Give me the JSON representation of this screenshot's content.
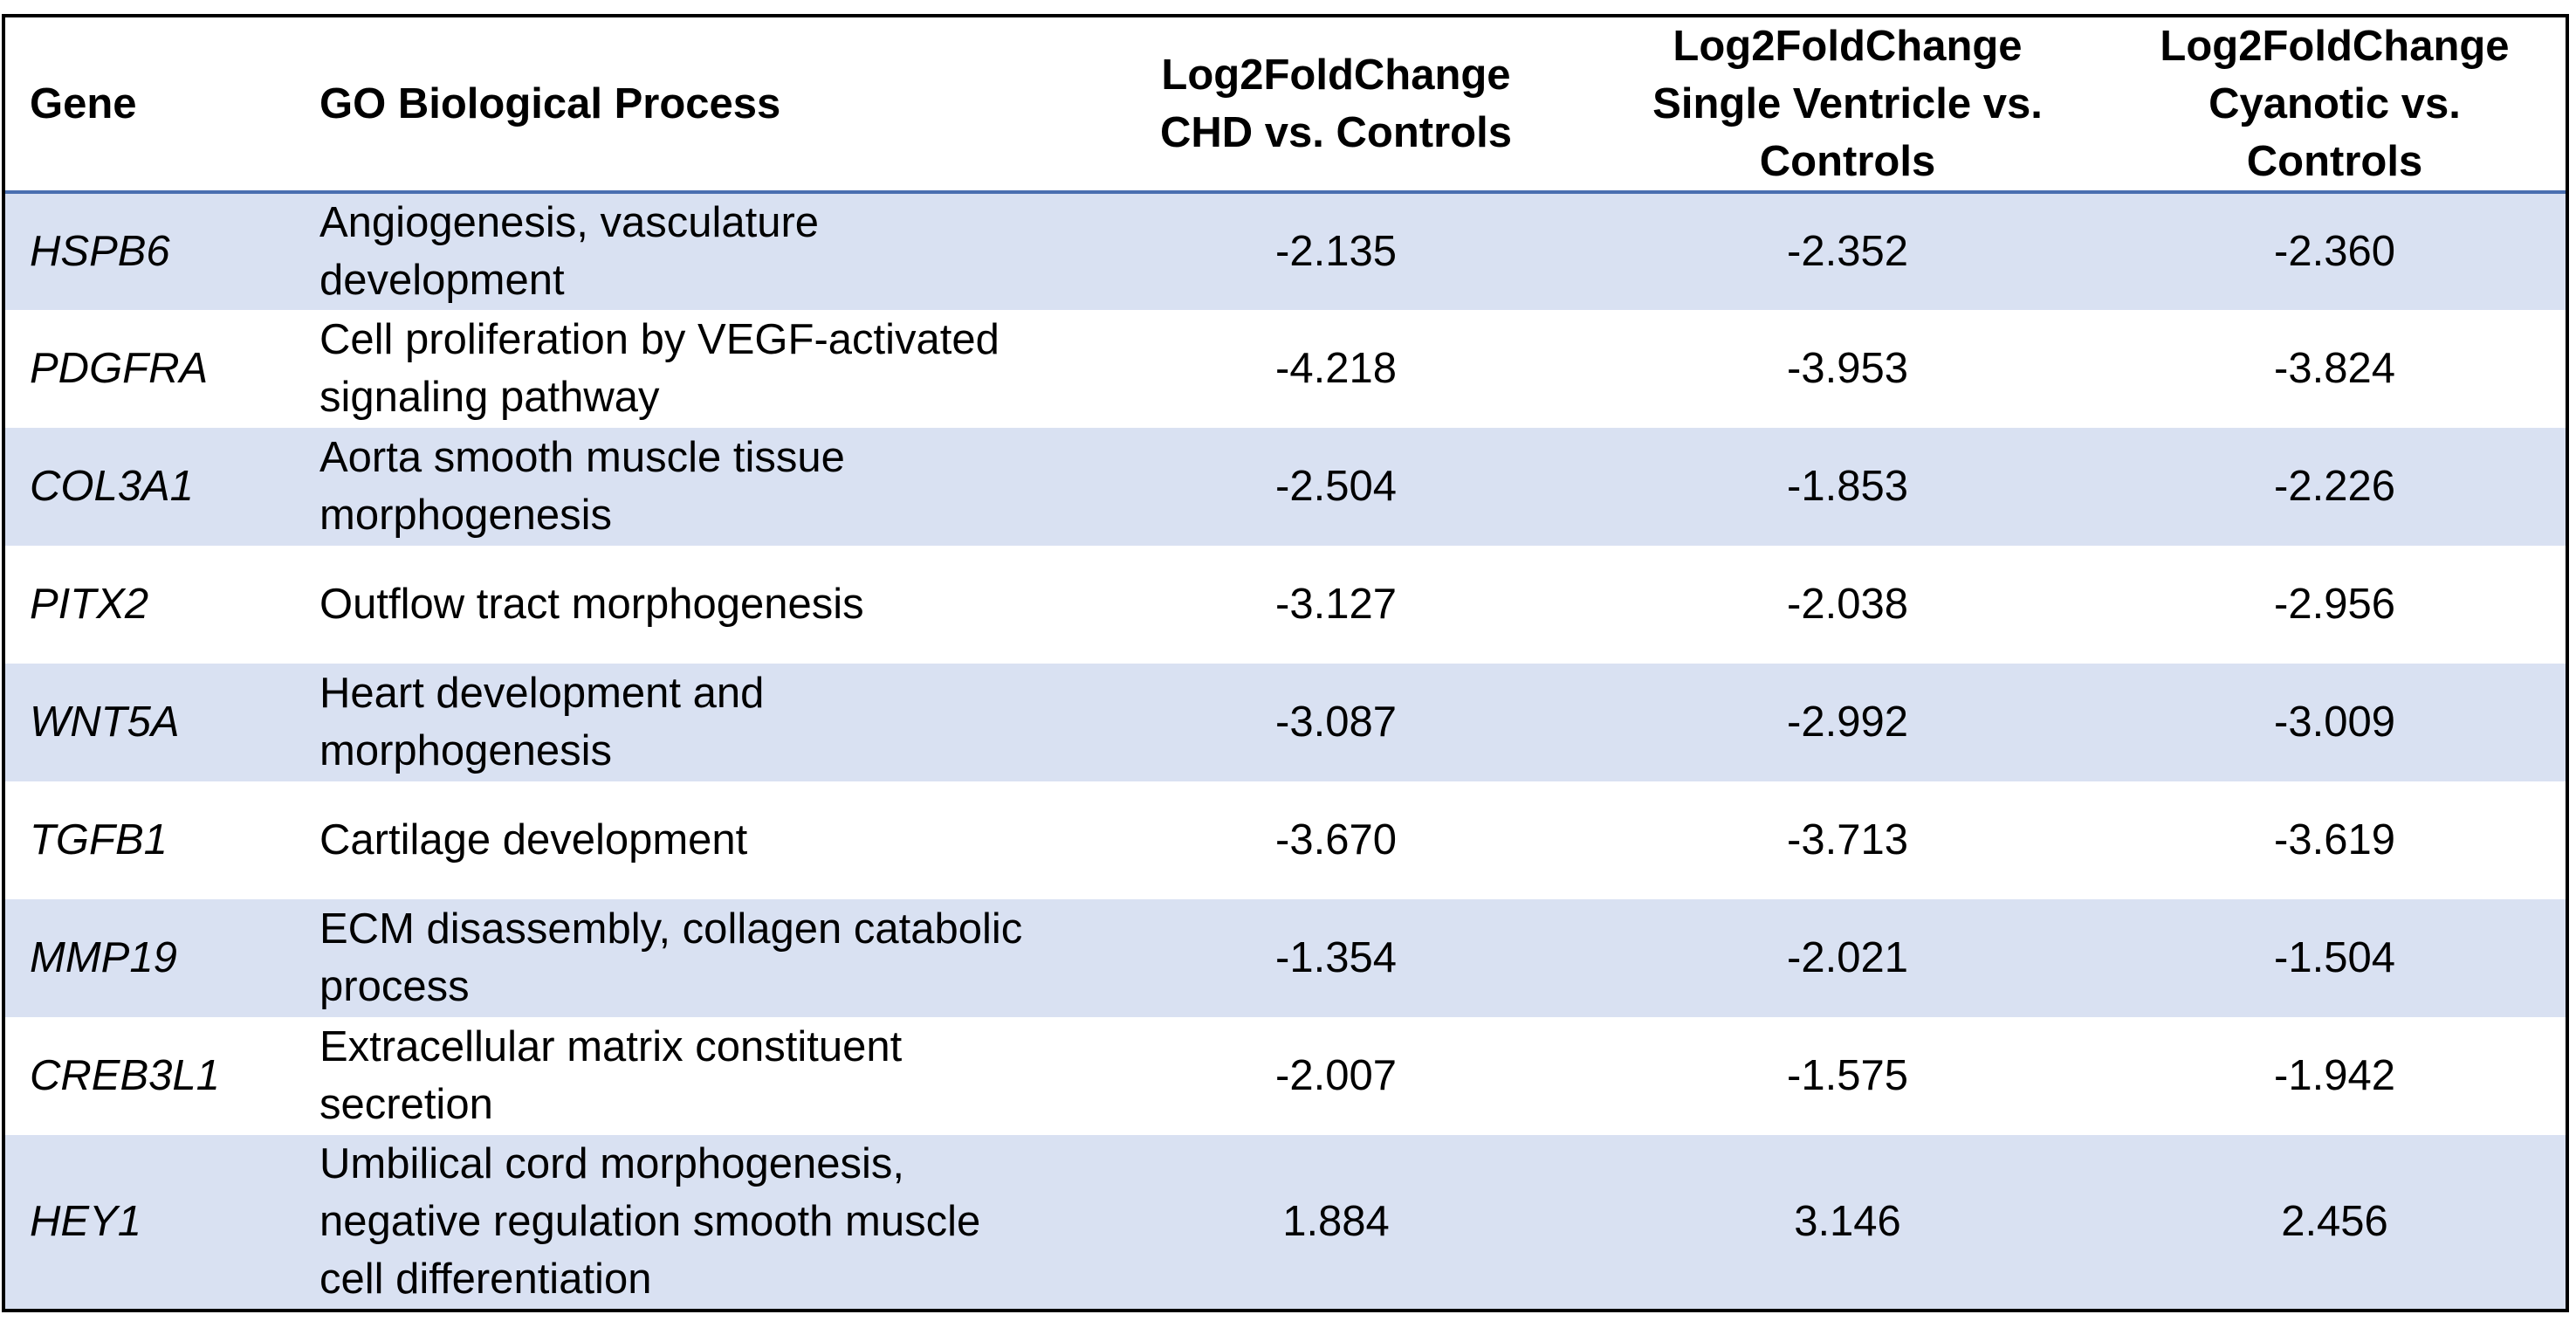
{
  "table": {
    "headers": {
      "gene": "Gene",
      "go": "GO Biological Process",
      "chd": [
        "Log2FoldChange",
        "CHD vs. Controls"
      ],
      "single_ventricle": [
        "Log2FoldChange",
        "Single Ventricle vs.",
        "Controls"
      ],
      "cyanotic": [
        "Log2FoldChange",
        "Cyanotic vs.",
        "Controls"
      ]
    },
    "rows": [
      {
        "gene": "HSPB6",
        "go": "Angiogenesis, vasculature development",
        "chd": "-2.135",
        "sv": "-2.352",
        "cy": "-2.360"
      },
      {
        "gene": "PDGFRA",
        "go": "Cell proliferation by VEGF-activated signaling pathway",
        "chd": "-4.218",
        "sv": "-3.953",
        "cy": "-3.824"
      },
      {
        "gene": "COL3A1",
        "go": "Aorta smooth muscle tissue morphogenesis",
        "chd": "-2.504",
        "sv": "-1.853",
        "cy": "-2.226"
      },
      {
        "gene": "PITX2",
        "go": "Outflow tract morphogenesis",
        "chd": "-3.127",
        "sv": "-2.038",
        "cy": "-2.956"
      },
      {
        "gene": "WNT5A",
        "go": "Heart development and morphogenesis",
        "chd": "-3.087",
        "sv": "-2.992",
        "cy": "-3.009"
      },
      {
        "gene": "TGFB1",
        "go": "Cartilage development",
        "chd": "-3.670",
        "sv": "-3.713",
        "cy": "-3.619"
      },
      {
        "gene": "MMP19",
        "go": "ECM disassembly, collagen catabolic process",
        "chd": "-1.354",
        "sv": "-2.021",
        "cy": "-1.504"
      },
      {
        "gene": "CREB3L1",
        "go": "Extracellular matrix constituent secretion",
        "chd": "-2.007",
        "sv": "-1.575",
        "cy": "-1.942"
      },
      {
        "gene": "HEY1",
        "go": "Umbilical cord morphogenesis, negative regulation smooth muscle cell differentiation",
        "chd": "1.884",
        "sv": "3.146",
        "cy": "2.456"
      }
    ]
  },
  "colors": {
    "band": "#d9e1f2",
    "header_rule": "#4a6fb0",
    "border": "#000000"
  }
}
